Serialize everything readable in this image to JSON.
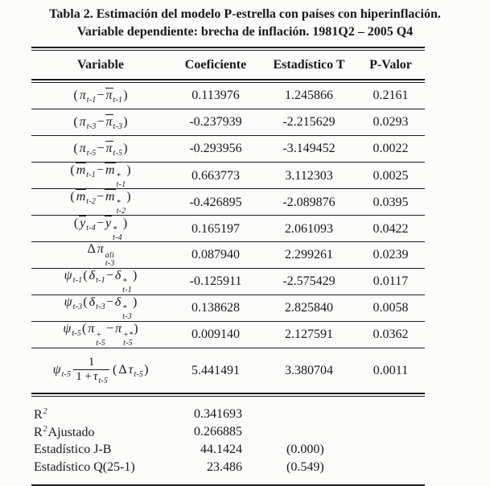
{
  "title": {
    "line1": "Tabla 2. Estimación del modelo P-estrella con países con hiperinflación.",
    "line2": "Variable dependiente: brecha de inflación. 1981Q2 – 2005 Q4"
  },
  "table": {
    "headers": [
      "Variable",
      "Coeficiente",
      "Estadístico T",
      "P-Valor"
    ],
    "rows": [
      {
        "variable": [
          {
            "x": "("
          },
          {
            "x": "π",
            "it": true,
            "sub": "t-1"
          },
          {
            "x": " − "
          },
          {
            "x": "π",
            "it": true,
            "ol": true,
            "sub": "t-1"
          },
          {
            "x": ")"
          }
        ],
        "coef": "0.113976",
        "tstat": "1.245866",
        "pval": "0.2161"
      },
      {
        "variable": [
          {
            "x": "("
          },
          {
            "x": "π",
            "it": true,
            "sub": "t-3"
          },
          {
            "x": " − "
          },
          {
            "x": "π",
            "it": true,
            "ol": true,
            "sub": "t-3"
          },
          {
            "x": ")"
          }
        ],
        "coef": "-0.237939",
        "tstat": "-2.215629",
        "pval": "0.0293"
      },
      {
        "variable": [
          {
            "x": "("
          },
          {
            "x": "π",
            "it": true,
            "sub": "t-5"
          },
          {
            "x": " − "
          },
          {
            "x": "π",
            "it": true,
            "ol": true,
            "sub": "t-5"
          },
          {
            "x": ")"
          }
        ],
        "coef": "-0.293956",
        "tstat": "-3.149452",
        "pval": "0.0022"
      },
      {
        "variable": [
          {
            "x": "("
          },
          {
            "x": "m",
            "it": true,
            "ol": true,
            "sub": "t-1"
          },
          {
            "x": " − "
          },
          {
            "x": "m",
            "it": true,
            "ol": true,
            "sup": "*",
            "sub": "t-1"
          },
          {
            "x": ")"
          }
        ],
        "coef": "0.663773",
        "tstat": "3.112303",
        "pval": "0.0025"
      },
      {
        "variable": [
          {
            "x": "("
          },
          {
            "x": "m",
            "it": true,
            "ol": true,
            "sub": "t-2"
          },
          {
            "x": " − "
          },
          {
            "x": "m",
            "it": true,
            "ol": true,
            "sup": "*",
            "sub": "t-2"
          },
          {
            "x": ")"
          }
        ],
        "coef": "-0.426895",
        "tstat": "-2.089876",
        "pval": "0.0395"
      },
      {
        "variable": [
          {
            "x": "("
          },
          {
            "x": "y",
            "it": true,
            "ol": true,
            "sub": "t-4"
          },
          {
            "x": " − "
          },
          {
            "x": "y",
            "it": true,
            "ol": true,
            "sup": "*",
            "sub": "t-4"
          },
          {
            "x": ")"
          }
        ],
        "coef": "0.165197",
        "tstat": "2.061093",
        "pval": "0.0422"
      },
      {
        "variable": [
          {
            "x": "Δ"
          },
          {
            "x": "π",
            "it": true,
            "sup": "ali",
            "sub": "t-3"
          }
        ],
        "coef": "0.087940",
        "tstat": "2.299261",
        "pval": "0.0239"
      },
      {
        "variable": [
          {
            "x": "ψ",
            "it": true,
            "sub": "t-1"
          },
          {
            "x": "("
          },
          {
            "x": "δ",
            "it": true,
            "sub": "t-1"
          },
          {
            "x": " − "
          },
          {
            "x": "δ",
            "it": true,
            "sup": "*",
            "sub": "t-1"
          },
          {
            "x": ")"
          }
        ],
        "coef": "-0.125911",
        "tstat": "-2.575429",
        "pval": "0.0117"
      },
      {
        "variable": [
          {
            "x": "ψ",
            "it": true,
            "sub": "t-3"
          },
          {
            "x": "("
          },
          {
            "x": "δ",
            "it": true,
            "sub": "t-3"
          },
          {
            "x": " − "
          },
          {
            "x": "δ",
            "it": true,
            "sup": "*",
            "sub": "t-3"
          },
          {
            "x": ")"
          }
        ],
        "coef": "0.138628",
        "tstat": "2.825840",
        "pval": "0.0058"
      },
      {
        "variable": [
          {
            "x": "ψ",
            "it": true,
            "sub": "t-5"
          },
          {
            "x": "("
          },
          {
            "x": "π",
            "it": true,
            "sup": "+",
            "sub": "t-5"
          },
          {
            "x": " − "
          },
          {
            "x": "π",
            "it": true,
            "sup": "+*",
            "sub": "t-5"
          },
          {
            "x": ")"
          }
        ],
        "coef": "0.009140",
        "tstat": "2.127591",
        "pval": "0.0362"
      },
      {
        "variable": [
          {
            "x": "ψ",
            "it": true,
            "sub": "t-5"
          },
          {
            "frac": {
              "num": [
                {
                  "x": "1"
                }
              ],
              "den": [
                {
                  "x": "1 + "
                },
                {
                  "x": "τ",
                  "it": true,
                  "sub": "t-5"
                }
              ]
            }
          },
          {
            "x": "("
          },
          {
            "x": "Δ"
          },
          {
            "x": "τ",
            "it": true,
            "sub": "t-5"
          },
          {
            "x": ")"
          }
        ],
        "coef": "5.441491",
        "tstat": "3.380704",
        "pval": "0.0011"
      }
    ],
    "stats": [
      {
        "label": [
          {
            "x": "R",
            "sup": "2"
          }
        ],
        "value": "0.341693",
        "paren": ""
      },
      {
        "label": [
          {
            "x": "R",
            "sup": "2"
          },
          {
            "x": " Ajustado"
          }
        ],
        "value": "0.266885",
        "paren": ""
      },
      {
        "label": [
          {
            "x": "Estadístico J-B"
          }
        ],
        "value": "44.1424",
        "paren": "(0.000)"
      },
      {
        "label": [
          {
            "x": "Estadístico Q(25-1)"
          }
        ],
        "value": "23.486",
        "paren": "(0.549)"
      }
    ]
  }
}
